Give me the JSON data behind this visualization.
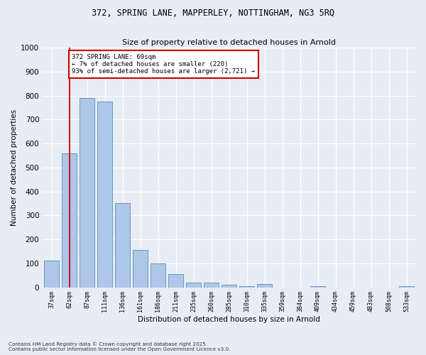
{
  "title_line1": "372, SPRING LANE, MAPPERLEY, NOTTINGHAM, NG3 5RQ",
  "title_line2": "Size of property relative to detached houses in Arnold",
  "xlabel": "Distribution of detached houses by size in Arnold",
  "ylabel": "Number of detached properties",
  "categories": [
    "37sqm",
    "62sqm",
    "87sqm",
    "111sqm",
    "136sqm",
    "161sqm",
    "186sqm",
    "211sqm",
    "235sqm",
    "260sqm",
    "285sqm",
    "310sqm",
    "335sqm",
    "359sqm",
    "384sqm",
    "409sqm",
    "434sqm",
    "459sqm",
    "483sqm",
    "508sqm",
    "533sqm"
  ],
  "values": [
    110,
    560,
    790,
    775,
    350,
    155,
    100,
    55,
    20,
    20,
    10,
    5,
    15,
    0,
    0,
    5,
    0,
    0,
    0,
    0,
    5
  ],
  "bar_color": "#aec6e8",
  "bar_edge_color": "#5b8db8",
  "bg_color": "#e8ecf4",
  "grid_color": "#ffffff",
  "annotation_text_line1": "372 SPRING LANE: 69sqm",
  "annotation_text_line2": "← 7% of detached houses are smaller (220)",
  "annotation_text_line3": "93% of semi-detached houses are larger (2,721) →",
  "annotation_box_color": "#ffffff",
  "annotation_box_edge": "#cc0000",
  "red_line_color": "#cc0000",
  "ylim": [
    0,
    1000
  ],
  "yticks": [
    0,
    100,
    200,
    300,
    400,
    500,
    600,
    700,
    800,
    900,
    1000
  ],
  "footer_line1": "Contains HM Land Registry data © Crown copyright and database right 2025.",
  "footer_line2": "Contains public sector information licensed under the Open Government Licence v3.0."
}
